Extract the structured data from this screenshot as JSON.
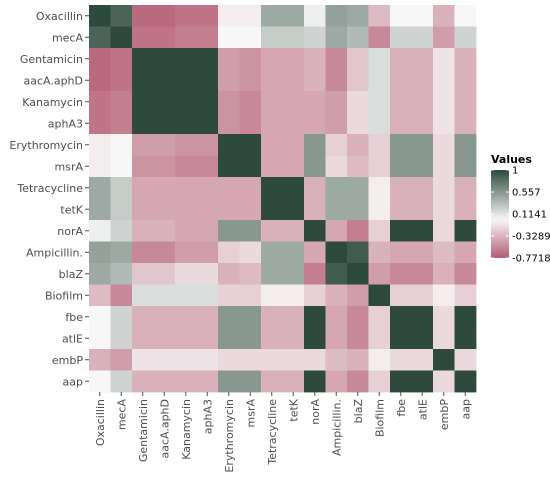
{
  "chart_data": {
    "type": "heatmap",
    "title": "",
    "xlabel": "",
    "ylabel": "",
    "variables": [
      "Oxacillin",
      "mecA",
      "Gentamicin",
      "aacA.aphD",
      "Kanamycin",
      "aphA3",
      "Erythromycin",
      "msrA",
      "Tetracycline",
      "tetK",
      "norA",
      "Ampicillin.",
      "blaZ",
      "Biofilm",
      "fbe",
      "atlE",
      "embP",
      "aap"
    ],
    "matrix": [
      [
        1.0,
        0.85,
        -0.7,
        -0.7,
        -0.65,
        -0.65,
        -0.05,
        -0.05,
        0.45,
        0.45,
        0.05,
        0.5,
        0.45,
        -0.3,
        0.0,
        0.0,
        -0.35,
        0.0
      ],
      [
        0.85,
        1.0,
        -0.65,
        -0.65,
        -0.6,
        -0.6,
        0.0,
        0.0,
        0.25,
        0.25,
        0.2,
        0.45,
        0.35,
        -0.55,
        0.2,
        0.2,
        -0.45,
        0.2
      ],
      [
        -0.7,
        -0.65,
        1.0,
        1.0,
        1.0,
        1.0,
        -0.45,
        -0.5,
        -0.4,
        -0.4,
        -0.35,
        -0.55,
        -0.25,
        0.15,
        -0.35,
        -0.35,
        -0.1,
        -0.35
      ],
      [
        -0.7,
        -0.65,
        1.0,
        1.0,
        1.0,
        1.0,
        -0.45,
        -0.5,
        -0.4,
        -0.4,
        -0.35,
        -0.55,
        -0.25,
        0.15,
        -0.35,
        -0.35,
        -0.1,
        -0.35
      ],
      [
        -0.65,
        -0.6,
        1.0,
        1.0,
        1.0,
        1.0,
        -0.5,
        -0.55,
        -0.4,
        -0.4,
        -0.4,
        -0.45,
        -0.15,
        0.15,
        -0.35,
        -0.35,
        -0.1,
        -0.35
      ],
      [
        -0.65,
        -0.6,
        1.0,
        1.0,
        1.0,
        1.0,
        -0.5,
        -0.55,
        -0.4,
        -0.4,
        -0.4,
        -0.45,
        -0.15,
        0.15,
        -0.35,
        -0.35,
        -0.1,
        -0.35
      ],
      [
        -0.05,
        0.0,
        -0.45,
        -0.45,
        -0.5,
        -0.5,
        1.0,
        1.0,
        -0.4,
        -0.4,
        0.55,
        -0.2,
        -0.35,
        -0.2,
        0.55,
        0.55,
        -0.15,
        0.55
      ],
      [
        -0.05,
        0.0,
        -0.5,
        -0.5,
        -0.55,
        -0.55,
        1.0,
        1.0,
        -0.4,
        -0.4,
        0.55,
        -0.15,
        -0.3,
        -0.2,
        0.55,
        0.55,
        -0.15,
        0.55
      ],
      [
        0.45,
        0.25,
        -0.4,
        -0.4,
        -0.4,
        -0.4,
        -0.4,
        -0.4,
        1.0,
        1.0,
        -0.35,
        0.45,
        0.45,
        -0.05,
        -0.35,
        -0.35,
        -0.15,
        -0.35
      ],
      [
        0.45,
        0.25,
        -0.4,
        -0.4,
        -0.4,
        -0.4,
        -0.4,
        -0.4,
        1.0,
        1.0,
        -0.35,
        0.45,
        0.45,
        -0.05,
        -0.35,
        -0.35,
        -0.15,
        -0.35
      ],
      [
        0.05,
        0.2,
        -0.35,
        -0.35,
        -0.4,
        -0.4,
        0.55,
        0.55,
        -0.35,
        -0.35,
        1.0,
        -0.4,
        -0.6,
        -0.2,
        1.0,
        1.0,
        -0.15,
        1.0
      ],
      [
        0.5,
        0.45,
        -0.55,
        -0.55,
        -0.45,
        -0.45,
        -0.2,
        -0.15,
        0.45,
        0.45,
        -0.4,
        1.0,
        0.9,
        -0.35,
        -0.4,
        -0.4,
        -0.3,
        -0.4
      ],
      [
        0.45,
        0.35,
        -0.25,
        -0.25,
        -0.15,
        -0.15,
        -0.35,
        -0.3,
        0.45,
        0.45,
        -0.6,
        0.9,
        1.0,
        -0.45,
        -0.55,
        -0.55,
        -0.35,
        -0.55
      ],
      [
        -0.3,
        -0.55,
        0.15,
        0.15,
        0.15,
        0.15,
        -0.2,
        -0.2,
        -0.05,
        -0.05,
        -0.2,
        -0.35,
        -0.45,
        1.0,
        -0.2,
        -0.2,
        -0.05,
        -0.2
      ],
      [
        0.0,
        0.2,
        -0.35,
        -0.35,
        -0.35,
        -0.35,
        0.55,
        0.55,
        -0.35,
        -0.35,
        1.0,
        -0.4,
        -0.55,
        -0.2,
        1.0,
        1.0,
        -0.15,
        1.0
      ],
      [
        0.0,
        0.2,
        -0.35,
        -0.35,
        -0.35,
        -0.35,
        0.55,
        0.55,
        -0.35,
        -0.35,
        1.0,
        -0.4,
        -0.55,
        -0.2,
        1.0,
        1.0,
        -0.15,
        1.0
      ],
      [
        -0.35,
        -0.45,
        -0.1,
        -0.1,
        -0.1,
        -0.1,
        -0.15,
        -0.15,
        -0.15,
        -0.15,
        -0.15,
        -0.3,
        -0.35,
        -0.05,
        -0.15,
        -0.15,
        1.0,
        -0.15
      ],
      [
        0.0,
        0.2,
        -0.35,
        -0.35,
        -0.35,
        -0.35,
        0.55,
        0.55,
        -0.35,
        -0.35,
        1.0,
        -0.4,
        -0.55,
        -0.2,
        1.0,
        1.0,
        -0.15,
        1.0
      ]
    ],
    "legend": {
      "title": "Values",
      "position": "right",
      "breaks": [
        1,
        0.557,
        0.1141,
        -0.3289,
        -0.7718
      ],
      "labels": [
        "1",
        "0.557",
        "0.1141",
        "-0.3289",
        "-0.7718"
      ],
      "range": [
        -0.7718,
        1
      ]
    },
    "colors": {
      "low": "#b45c73",
      "mid": "#f7f7f7",
      "high": "#2e4a3c"
    },
    "grid": false
  }
}
